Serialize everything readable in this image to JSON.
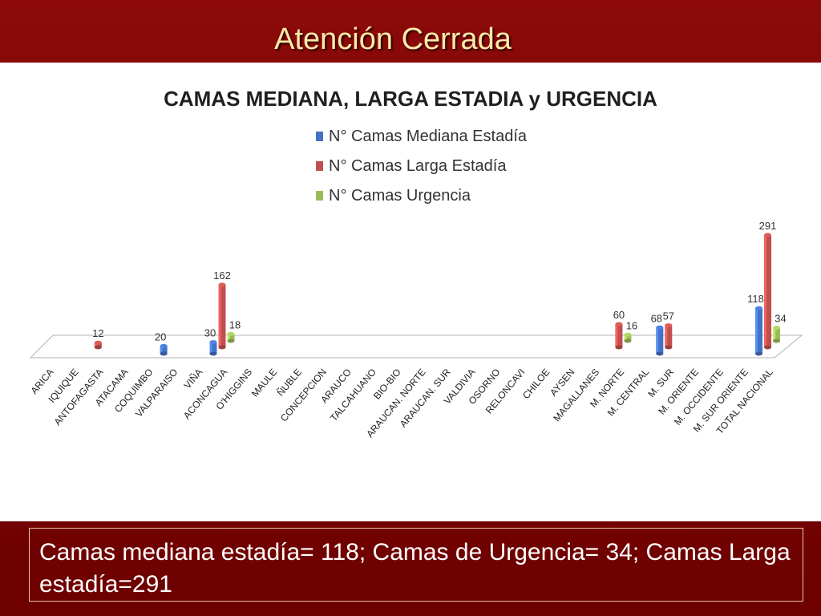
{
  "slide": {
    "title": "Atención Cerrada",
    "summary": "Camas mediana estadía= 118; Camas de Urgencia= 34; Camas Larga estadía=291"
  },
  "colors": {
    "mediana": "#4472c4",
    "larga": "#c0504d",
    "urgencia": "#9bbb59"
  },
  "chart_data": {
    "type": "bar",
    "title": "CAMAS MEDIANA, LARGA ESTADIA y URGENCIA",
    "legend_position": "top-center",
    "categories": [
      "ARICA",
      "IQUIQUE",
      "ANTOFAGASTA",
      "ATACAMA",
      "COQUIMBO",
      "VALPARAISO",
      "VIÑA",
      "ACONCAGUA",
      "O'HIGGINS",
      "MAULE",
      "ÑUBLE",
      "CONCEPCION",
      "ARAUCO",
      "TALCAHUANO",
      "BIO-BIO",
      "ARAUCAN. NORTE",
      "ARAUCAN. SUR",
      "VALDIVIA",
      "OSORNO",
      "RELONCAVI",
      "CHILOE",
      "AYSEN",
      "MAGALLANES",
      "M. NORTE",
      "M. CENTRAL",
      "M. SUR",
      "M. ORIENTE",
      "M. OCCIDENTE",
      "M. SUR ORIENTE",
      "TOTAL NACIONAL"
    ],
    "series": [
      {
        "name": "N° Camas Mediana Estadía",
        "color_key": "mediana",
        "values": [
          null,
          null,
          null,
          null,
          null,
          20,
          null,
          30,
          null,
          null,
          null,
          null,
          null,
          null,
          null,
          null,
          null,
          null,
          null,
          null,
          null,
          null,
          null,
          null,
          null,
          68,
          null,
          null,
          null,
          118
        ]
      },
      {
        "name": "N° Camas Larga Estadía",
        "color_key": "larga",
        "values": [
          null,
          null,
          12,
          null,
          null,
          null,
          null,
          162,
          null,
          null,
          null,
          null,
          null,
          null,
          null,
          null,
          null,
          null,
          null,
          null,
          null,
          null,
          null,
          60,
          null,
          57,
          null,
          null,
          null,
          291
        ]
      },
      {
        "name": "N° Camas Urgencia",
        "color_key": "urgencia",
        "values": [
          null,
          null,
          null,
          null,
          null,
          null,
          null,
          18,
          null,
          null,
          null,
          null,
          null,
          null,
          null,
          null,
          null,
          null,
          null,
          null,
          null,
          null,
          null,
          16,
          null,
          null,
          null,
          null,
          null,
          34
        ]
      }
    ],
    "ylim": [
      0,
      291
    ]
  }
}
